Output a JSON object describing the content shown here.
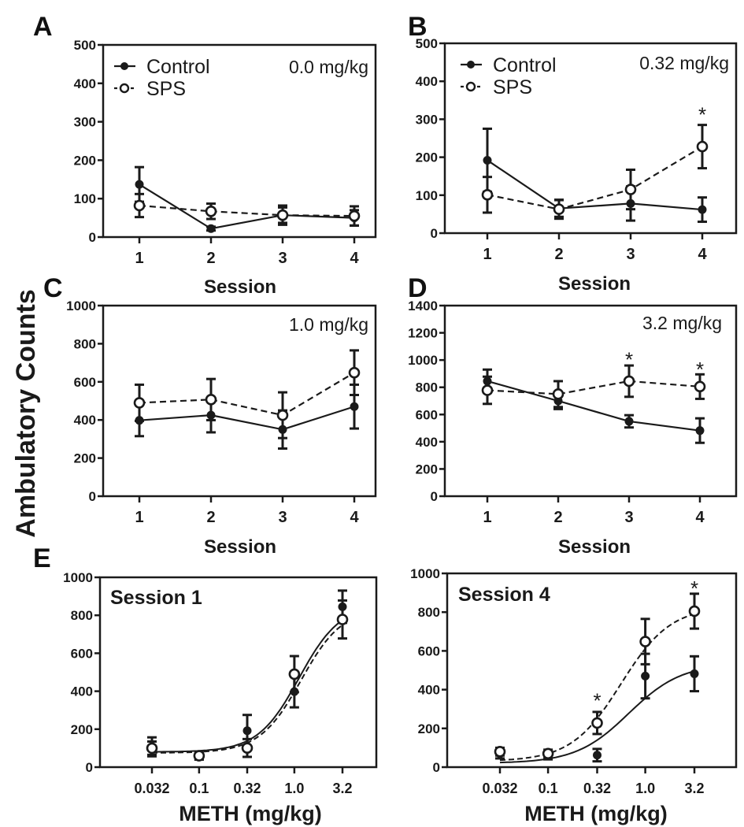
{
  "figure": {
    "ylabel": "Ambulatory Counts",
    "colors": {
      "ink": "#1a1a1a",
      "background": "#ffffff"
    }
  },
  "chart_data": [
    {
      "id": "A",
      "panel_label": "A",
      "type": "line",
      "dose_label": "0.0 mg/kg",
      "xlabel": "Session",
      "x": [
        1,
        2,
        3,
        4
      ],
      "xticks": [
        "1",
        "2",
        "3",
        "4"
      ],
      "ylim": [
        0,
        500
      ],
      "yticks": [
        0,
        100,
        200,
        300,
        400,
        500
      ],
      "legend": {
        "placement": "top-left",
        "entries": [
          "Control",
          "SPS"
        ]
      },
      "series": [
        {
          "name": "Control",
          "values": [
            137,
            22,
            57,
            50
          ],
          "errors": [
            45,
            5,
            25,
            20
          ]
        },
        {
          "name": "SPS",
          "values": [
            82,
            67,
            57,
            55
          ],
          "errors": [
            30,
            20,
            20,
            25
          ]
        }
      ],
      "annotations": []
    },
    {
      "id": "B",
      "panel_label": "B",
      "type": "line",
      "dose_label": "0.32 mg/kg",
      "xlabel": "Session",
      "x": [
        1,
        2,
        3,
        4
      ],
      "xticks": [
        "1",
        "2",
        "3",
        "4"
      ],
      "ylim": [
        0,
        500
      ],
      "yticks": [
        0,
        100,
        200,
        300,
        400,
        500
      ],
      "legend": {
        "placement": "top-left",
        "entries": [
          "Control",
          "SPS"
        ]
      },
      "series": [
        {
          "name": "Control",
          "values": [
            192,
            65,
            78,
            62
          ],
          "errors": [
            83,
            22,
            45,
            32
          ]
        },
        {
          "name": "SPS",
          "values": [
            101,
            63,
            115,
            228
          ],
          "errors": [
            47,
            25,
            52,
            57
          ]
        }
      ],
      "annotations": [
        {
          "x": 4,
          "y": 318,
          "label": "*"
        }
      ]
    },
    {
      "id": "C",
      "panel_label": "C",
      "type": "line",
      "dose_label": "1.0 mg/kg",
      "xlabel": "Session",
      "x": [
        1,
        2,
        3,
        4
      ],
      "xticks": [
        "1",
        "2",
        "3",
        "4"
      ],
      "ylim": [
        0,
        1000
      ],
      "yticks": [
        0,
        200,
        400,
        600,
        800,
        1000
      ],
      "series": [
        {
          "name": "Control",
          "values": [
            398,
            425,
            350,
            470
          ],
          "errors": [
            83,
            90,
            100,
            115
          ]
        },
        {
          "name": "SPS",
          "values": [
            490,
            507,
            425,
            648
          ],
          "errors": [
            95,
            108,
            120,
            117
          ]
        }
      ],
      "annotations": []
    },
    {
      "id": "D",
      "panel_label": "D",
      "type": "line",
      "dose_label": "3.2 mg/kg",
      "xlabel": "Session",
      "x": [
        1,
        2,
        3,
        4
      ],
      "xticks": [
        "1",
        "2",
        "3",
        "4"
      ],
      "ylim": [
        0,
        1400
      ],
      "yticks": [
        0,
        200,
        400,
        600,
        800,
        1000,
        1200,
        1400
      ],
      "series": [
        {
          "name": "Control",
          "values": [
            845,
            700,
            550,
            482
          ],
          "errors": [
            85,
            60,
            45,
            90
          ]
        },
        {
          "name": "SPS",
          "values": [
            778,
            750,
            845,
            805
          ],
          "errors": [
            100,
            95,
            115,
            90
          ]
        }
      ],
      "annotations": [
        {
          "x": 3,
          "y": 1020,
          "label": "*"
        },
        {
          "x": 4,
          "y": 950,
          "label": "*"
        }
      ]
    },
    {
      "id": "E1",
      "panel_label": "E",
      "type": "scatter",
      "subtitle": "Session 1",
      "xlabel": "METH (mg/kg)",
      "xscale": "log",
      "x": [
        0.032,
        0.1,
        0.32,
        1.0,
        3.2
      ],
      "xticks": [
        "0.032",
        "0.1",
        "0.32",
        "1.0",
        "3.2"
      ],
      "ylim": [
        0,
        1000
      ],
      "yticks": [
        0,
        200,
        400,
        600,
        800,
        1000
      ],
      "series": [
        {
          "name": "Control",
          "values": [
            107,
            55,
            192,
            398,
            845
          ],
          "errors": [
            50,
            15,
            83,
            83,
            85
          ],
          "fit": {
            "bottom": 80,
            "top": 860,
            "log_ec50": 0.05,
            "hill": 2.0
          }
        },
        {
          "name": "SPS",
          "values": [
            100,
            60,
            101,
            490,
            778
          ],
          "errors": [
            35,
            20,
            47,
            95,
            100
          ],
          "fit": {
            "bottom": 75,
            "top": 840,
            "log_ec50": 0.07,
            "hill": 2.0
          }
        }
      ],
      "annotations": []
    },
    {
      "id": "E4",
      "panel_label": "",
      "type": "scatter",
      "subtitle": "Session 4",
      "xlabel": "METH (mg/kg)",
      "xscale": "log",
      "x": [
        0.032,
        0.1,
        0.32,
        1.0,
        3.2
      ],
      "xticks": [
        "0.032",
        "0.1",
        "0.32",
        "1.0",
        "3.2"
      ],
      "ylim": [
        0,
        1000
      ],
      "yticks": [
        0,
        200,
        400,
        600,
        800,
        1000
      ],
      "series": [
        {
          "name": "Control",
          "values": [
            70,
            60,
            62,
            470,
            482
          ],
          "errors": [
            25,
            20,
            32,
            115,
            90
          ],
          "fit": {
            "bottom": 20,
            "top": 535,
            "log_ec50": -0.17,
            "hill": 1.6
          }
        },
        {
          "name": "SPS",
          "values": [
            80,
            70,
            228,
            648,
            805
          ],
          "errors": [
            20,
            20,
            57,
            117,
            90
          ],
          "fit": {
            "bottom": 30,
            "top": 830,
            "log_ec50": -0.25,
            "hill": 1.7
          }
        }
      ],
      "annotations": [
        {
          "x": 0.32,
          "y": 355,
          "label": "*"
        },
        {
          "x": 3.2,
          "y": 935,
          "label": "*"
        }
      ]
    }
  ]
}
